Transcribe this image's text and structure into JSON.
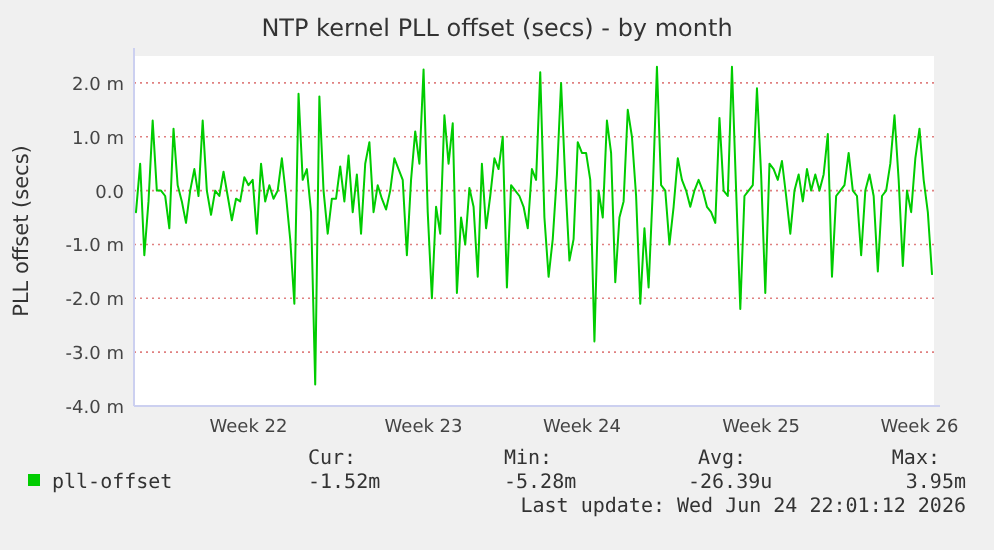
{
  "chart_data": {
    "type": "line",
    "title": "NTP kernel PLL offset (secs) - by month",
    "ylabel": "PLL offset (secs)",
    "categories": [
      null,
      null,
      null,
      null,
      null,
      null,
      null,
      null,
      null,
      null,
      null,
      null,
      null,
      null,
      null,
      null,
      null,
      null,
      null,
      null,
      null,
      null,
      null,
      null,
      null,
      null,
      null,
      "Week 22",
      null,
      null,
      null,
      null,
      null,
      null,
      null,
      null,
      null,
      null,
      null,
      null,
      null,
      null,
      null,
      null,
      null,
      null,
      null,
      null,
      null,
      null,
      null,
      null,
      null,
      null,
      null,
      null,
      null,
      null,
      null,
      null,
      null,
      null,
      null,
      null,
      null,
      null,
      null,
      null,
      null,
      "Week 23",
      null,
      null,
      null,
      null,
      null,
      null,
      null,
      null,
      null,
      null,
      null,
      null,
      null,
      null,
      null,
      null,
      null,
      null,
      null,
      null,
      null,
      null,
      null,
      null,
      null,
      null,
      null,
      null,
      null,
      null,
      null,
      null,
      null,
      null,
      null,
      null,
      null,
      "Week 24",
      null,
      null,
      null,
      null,
      null,
      null,
      null,
      null,
      null,
      null,
      null,
      null,
      null,
      null,
      null,
      null,
      null,
      null,
      null,
      null,
      null,
      null,
      null,
      null,
      null,
      null,
      null,
      null,
      null,
      null,
      null,
      null,
      null,
      null,
      null,
      null,
      null,
      null,
      null,
      null,
      null,
      null,
      "Week 25",
      null,
      null,
      null,
      null,
      null,
      null,
      null,
      null,
      null,
      null,
      null,
      null,
      null,
      null,
      null,
      null,
      null,
      null,
      null,
      null,
      null,
      null,
      null,
      null,
      null,
      null,
      null,
      null,
      null,
      null,
      null,
      null,
      null,
      null,
      null,
      null,
      null,
      "Week 26",
      null,
      null,
      null
    ],
    "ylim": [
      -4,
      2.5
    ],
    "yticks": [
      {
        "value": -4,
        "label": "-4.0 m"
      },
      {
        "value": -3,
        "label": "-3.0 m"
      },
      {
        "value": -2,
        "label": "-2.0 m"
      },
      {
        "value": -1,
        "label": "-1.0 m"
      },
      {
        "value": 0,
        "label": "0.0"
      },
      {
        "value": 1,
        "label": "1.0 m"
      },
      {
        "value": 2,
        "label": "2.0 m"
      }
    ],
    "grid": "y",
    "legend": "bottom",
    "series": [
      {
        "name": "pll-offset",
        "color": "#00cc00",
        "values": [
          -0.4,
          0.5,
          -1.2,
          -0.2,
          1.3,
          0,
          0,
          -0.1,
          -0.7,
          1.15,
          0.1,
          -0.2,
          -0.6,
          0,
          0.4,
          -0.1,
          1.3,
          0,
          -0.45,
          0,
          -0.1,
          0.35,
          -0.1,
          -0.55,
          -0.15,
          -0.2,
          0.25,
          0.1,
          0.2,
          -0.8,
          0.5,
          -0.2,
          0.1,
          -0.15,
          0,
          0.6,
          -0.1,
          -0.9,
          -2.1,
          1.8,
          0.2,
          0.4,
          -0.4,
          -3.6,
          1.75,
          0,
          -0.8,
          -0.15,
          -0.15,
          0.45,
          -0.2,
          0.65,
          -0.4,
          0.3,
          -0.8,
          0.5,
          0.9,
          -0.4,
          0.1,
          -0.15,
          -0.35,
          0,
          0.6,
          0.4,
          0.2,
          -1.2,
          0.2,
          1.1,
          0.5,
          2.25,
          -0.4,
          -2,
          -0.3,
          -0.8,
          1.4,
          0.5,
          1.25,
          -1.9,
          -0.5,
          -1,
          0.05,
          -0.3,
          -1.6,
          0.5,
          -0.7,
          -0.1,
          0.6,
          0.4,
          1,
          -1.8,
          0.1,
          0,
          -0.1,
          -0.3,
          -0.7,
          0.4,
          0.2,
          2.2,
          -0.5,
          -1.6,
          -0.9,
          0.3,
          2,
          0.2,
          -1.3,
          -0.9,
          0.9,
          0.7,
          0.7,
          0.2,
          -2.8,
          0,
          -0.5,
          1.3,
          0.7,
          -1.7,
          -0.5,
          -0.2,
          1.5,
          1,
          -0.1,
          -2.1,
          -0.7,
          -1.8,
          0,
          2.3,
          0.1,
          0,
          -1,
          -0.3,
          0.6,
          0.2,
          0,
          -0.3,
          0,
          0.2,
          0,
          -0.3,
          -0.4,
          -0.6,
          1.35,
          0,
          -0.1,
          2.3,
          0,
          -2.2,
          -0.1,
          0,
          0.1,
          1.9,
          0.3,
          -1.9,
          0.5,
          0.4,
          0.2,
          0.55,
          -0.1,
          -0.8,
          0,
          0.3,
          -0.2,
          0.4,
          0,
          0.3,
          0,
          0.3,
          1.05,
          -1.6,
          -0.1,
          0,
          0.1,
          0.7,
          0,
          -0.1,
          -1.2,
          0,
          0.3,
          -0.1,
          -1.5,
          -0.1,
          0,
          0.5,
          1.4,
          0.2,
          -1.4,
          0,
          -0.4,
          0.6,
          1.15,
          0.2,
          -0.4,
          -1.55
        ]
      }
    ],
    "annotations": [
      "Cur:",
      "Min:",
      "Avg:",
      "Max:",
      "-1.52m",
      "-5.28m",
      "-26.39u",
      "3.95m",
      "Last update: Wed Jun 24 22:01:12 2026"
    ]
  }
}
